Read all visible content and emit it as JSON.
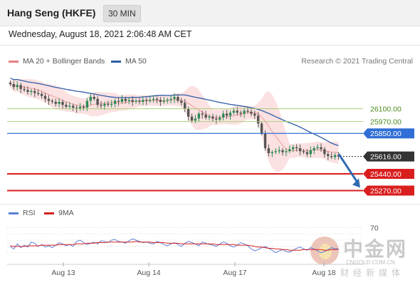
{
  "header": {
    "title": "Hang Seng (HKFE)",
    "timeframe": "30 MIN"
  },
  "datetime": "Wednesday, August 18, 2021 2:06:48 AM CET",
  "legend": {
    "bb_label": "MA 20 + Bollinger Bands",
    "ma50_label": "MA 50",
    "credit": "Research © 2021 Trading Central"
  },
  "rsi_legend": {
    "rsi_label": "RSI",
    "ma_label": "9MA",
    "level_label": "70"
  },
  "colors": {
    "up": "#2e8b57",
    "down": "#555555",
    "bollinger": "#f8c9c9",
    "ma20": "#e88080",
    "ma50": "#2f5da8",
    "resistance": "#a9d17c",
    "resistance_text": "#4a8a1a",
    "pivot": "#2f6fd6",
    "support": "#d91e1e",
    "last": "#333333",
    "rsi": "#5b7fd6",
    "rsi_ma": "#d92020",
    "arrow": "#2f6ab0"
  },
  "watermark": {
    "brand": "中金网",
    "url": "CNGOLD.COM.CN",
    "tagline": "财经新媒体"
  },
  "chart_data": {
    "type": "candlestick",
    "title": "Hang Seng (HKFE)",
    "x_tick_labels": [
      "Aug 13",
      "Aug 14",
      "Aug 17",
      "Aug 18"
    ],
    "ylim": [
      25180,
      26480
    ],
    "levels": [
      {
        "name": "resistance-2",
        "value": 26100,
        "label": "26100.00",
        "kind": "resistance"
      },
      {
        "name": "resistance-1",
        "value": 25970,
        "label": "25970.00",
        "kind": "resistance"
      },
      {
        "name": "pivot",
        "value": 25850,
        "label": "25850.00",
        "kind": "pivot"
      },
      {
        "name": "last-price",
        "value": 25616,
        "label": "25616.00",
        "kind": "last"
      },
      {
        "name": "support-1",
        "value": 25440,
        "label": "25440.00",
        "kind": "support"
      },
      {
        "name": "support-2",
        "value": 25270,
        "label": "25270.00",
        "kind": "support"
      }
    ],
    "close_series": [
      26350,
      26320,
      26340,
      26300,
      26290,
      26270,
      26280,
      26260,
      26250,
      26230,
      26200,
      26180,
      26170,
      26150,
      26170,
      26140,
      26120,
      26130,
      26110,
      26100,
      26120,
      26110,
      26180,
      26220,
      26200,
      26140,
      26130,
      26150,
      26140,
      26150,
      26180,
      26170,
      26200,
      26180,
      26190,
      26170,
      26180,
      26170,
      26190,
      26180,
      26190,
      26200,
      26190,
      26170,
      26180,
      26190,
      26200,
      26220,
      26180,
      26160,
      26100,
      26020,
      25980,
      26000,
      26050,
      26040,
      26010,
      26020,
      26000,
      25990,
      26010,
      26050,
      26030,
      26060,
      26080,
      26060,
      26050,
      26080,
      26070,
      26050,
      26030,
      25950,
      25850,
      25700,
      25650,
      25660,
      25670,
      25680,
      25660,
      25670,
      25690,
      25710,
      25700,
      25670,
      25660,
      25640,
      25680,
      25700,
      25710,
      25690,
      25640,
      25620,
      25610,
      25630,
      25616
    ],
    "rsi": {
      "ylim": [
        15,
        85
      ],
      "level": 70,
      "rsi_values": [
        40,
        36,
        44,
        38,
        42,
        39,
        47,
        45,
        40,
        43,
        39,
        41,
        38,
        42,
        46,
        44,
        41,
        43,
        40,
        48,
        50,
        46,
        43,
        45,
        47,
        44,
        49,
        48,
        46,
        50,
        51,
        48,
        47,
        45,
        49,
        52,
        50,
        48,
        46,
        47,
        45,
        44,
        48,
        46,
        43,
        41,
        44,
        46,
        43,
        40,
        45,
        48,
        46,
        44,
        41,
        47,
        45,
        43,
        42,
        40,
        44,
        47,
        45,
        41,
        39,
        42,
        46,
        44,
        41,
        36,
        33,
        35,
        38,
        40,
        37,
        34,
        30,
        33,
        35,
        32,
        31,
        34,
        37,
        39,
        36,
        34,
        38,
        36,
        33,
        30,
        32,
        35,
        38,
        36,
        37
      ],
      "ma_values": [
        41,
        40,
        40,
        40,
        40,
        41,
        41,
        41,
        41,
        42,
        42,
        42,
        42,
        42,
        43,
        43,
        43,
        43,
        43,
        44,
        44,
        44,
        45,
        45,
        45,
        46,
        46,
        46,
        47,
        47,
        47,
        47,
        47,
        47,
        47,
        47,
        48,
        47,
        47,
        47,
        47,
        46,
        46,
        46,
        46,
        45,
        45,
        45,
        45,
        44,
        44,
        44,
        44,
        44,
        44,
        44,
        44,
        44,
        44,
        43,
        43,
        43,
        43,
        43,
        43,
        42,
        42,
        42,
        42,
        41,
        40,
        39,
        39,
        38,
        37,
        37,
        36,
        36,
        35,
        35,
        34,
        34,
        34,
        34,
        35,
        35,
        35,
        35,
        35,
        35,
        34,
        34,
        35,
        35,
        35
      ]
    }
  }
}
